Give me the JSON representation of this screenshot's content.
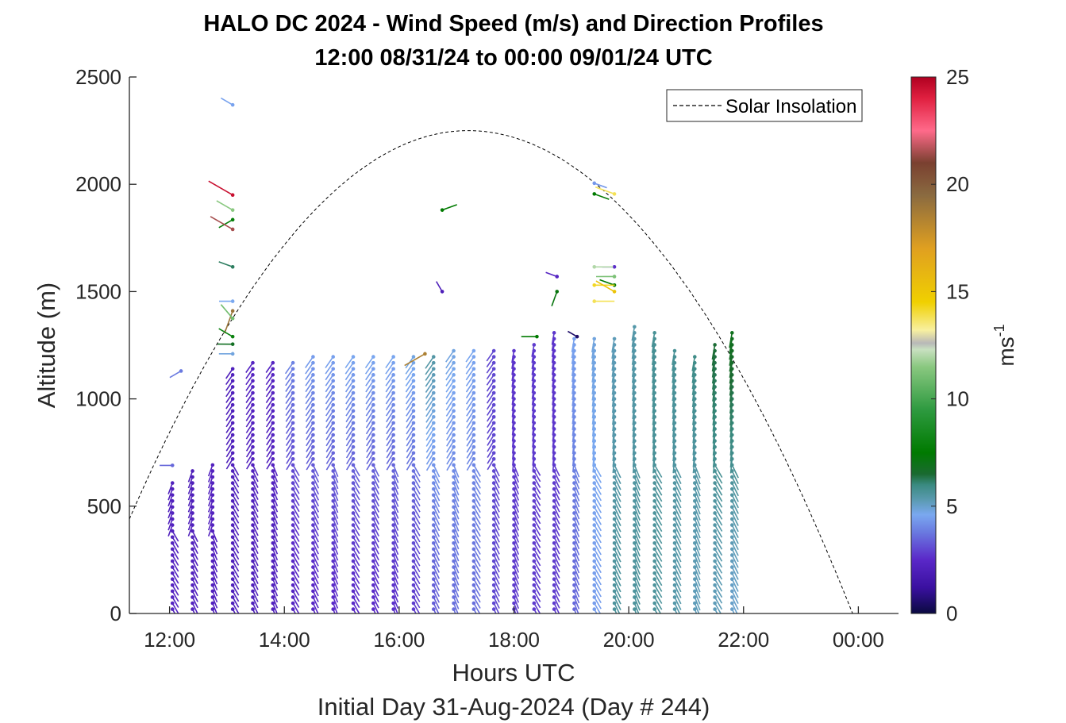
{
  "chart_data": {
    "type": "quiver",
    "title": "HALO DC 2024 - Wind Speed (m/s) and Direction Profiles",
    "subtitle": "12:00 08/31/24 to 00:00 09/01/24  UTC",
    "xlabel": "Hours UTC",
    "xlabel2": "Initial Day 31-Aug-2024 (Day # 244)",
    "ylabel": "Altitude (m)",
    "xlim": [
      11.3,
      24.7
    ],
    "ylim": [
      0,
      2500
    ],
    "xticks": [
      {
        "value": 12,
        "label": "12:00"
      },
      {
        "value": 14,
        "label": "14:00"
      },
      {
        "value": 16,
        "label": "16:00"
      },
      {
        "value": 18,
        "label": "18:00"
      },
      {
        "value": 20,
        "label": "20:00"
      },
      {
        "value": 22,
        "label": "22:00"
      },
      {
        "value": 24,
        "label": "00:00"
      }
    ],
    "yticks": [
      {
        "value": 0,
        "label": "0"
      },
      {
        "value": 500,
        "label": "500"
      },
      {
        "value": 1000,
        "label": "1000"
      },
      {
        "value": 1500,
        "label": "1500"
      },
      {
        "value": 2000,
        "label": "2000"
      },
      {
        "value": 2500,
        "label": "2500"
      }
    ],
    "colorbar": {
      "label": "ms",
      "label_sup": "-1",
      "range": [
        0,
        25
      ],
      "ticks": [
        {
          "value": 0,
          "label": "0"
        },
        {
          "value": 5,
          "label": "5"
        },
        {
          "value": 10,
          "label": "10"
        },
        {
          "value": 15,
          "label": "15"
        },
        {
          "value": 20,
          "label": "20"
        },
        {
          "value": 25,
          "label": "25"
        }
      ],
      "stops": [
        {
          "v": 0,
          "c": "#0a0a40"
        },
        {
          "v": 1.2,
          "c": "#3a10a0"
        },
        {
          "v": 2.5,
          "c": "#5a28c8"
        },
        {
          "v": 3.8,
          "c": "#6a7ae0"
        },
        {
          "v": 4.6,
          "c": "#7aa8f0"
        },
        {
          "v": 5.3,
          "c": "#5a9ab0"
        },
        {
          "v": 6.0,
          "c": "#3a8a80"
        },
        {
          "v": 6.5,
          "c": "#1a6a30"
        },
        {
          "v": 7.5,
          "c": "#007a00"
        },
        {
          "v": 9.5,
          "c": "#2e9a40"
        },
        {
          "v": 11.5,
          "c": "#8ac880"
        },
        {
          "v": 12.3,
          "c": "#c8e0c0"
        },
        {
          "v": 12.6,
          "c": "#b8b8b8"
        },
        {
          "v": 13.2,
          "c": "#f8f0a0"
        },
        {
          "v": 14.5,
          "c": "#f0d000"
        },
        {
          "v": 17.0,
          "c": "#e0a020"
        },
        {
          "v": 19.5,
          "c": "#8a6a40"
        },
        {
          "v": 21.0,
          "c": "#7a4030"
        },
        {
          "v": 22.5,
          "c": "#ff6a8a"
        },
        {
          "v": 24.0,
          "c": "#e02040"
        },
        {
          "v": 25.0,
          "c": "#b00020"
        }
      ]
    },
    "legend": {
      "label": "Solar Insolation",
      "position": "top-right",
      "style": "dashed"
    },
    "solar_insolation": {
      "rise_hour": 11.3,
      "set_hour": 23.9,
      "peak_hour": 17.2,
      "peak_altitude": 2250,
      "start_altitude": 440
    },
    "profile_times": [
      12.05,
      12.4,
      12.75,
      13.1,
      13.45,
      13.8,
      14.15,
      14.5,
      14.85,
      15.2,
      15.55,
      15.9,
      16.25,
      16.6,
      16.95,
      17.3,
      17.65,
      18.0,
      18.35,
      18.7,
      19.05,
      19.4,
      19.75,
      20.1,
      20.45,
      20.8,
      21.15,
      21.5,
      21.8
    ],
    "profile_tops": [
      620,
      690,
      700,
      1160,
      1170,
      1180,
      1190,
      1200,
      1210,
      1210,
      1210,
      1210,
      1210,
      1210,
      1240,
      1250,
      1250,
      1250,
      1260,
      1320,
      1280,
      1290,
      1300,
      1360,
      1320,
      1240,
      1220,
      1270,
      1320
    ],
    "profile_speeds_low": [
      2.3,
      2.2,
      2.2,
      2.1,
      2.1,
      2.2,
      2.3,
      2.4,
      2.5,
      2.5,
      2.5,
      2.6,
      2.8,
      3.3,
      3.6,
      3.6,
      3.0,
      2.8,
      2.8,
      2.8,
      3.5,
      4.4,
      5.6,
      5.6,
      5.6,
      5.4,
      5.2,
      5.2,
      5.0
    ],
    "profile_speeds_high": [
      2.1,
      2.0,
      2.2,
      2.1,
      2.3,
      2.3,
      4.0,
      4.4,
      4.5,
      4.6,
      4.6,
      4.6,
      4.8,
      5.5,
      4.8,
      4.6,
      3.0,
      2.7,
      2.8,
      2.7,
      4.5,
      4.8,
      5.2,
      5.4,
      5.7,
      5.7,
      5.9,
      6.5,
      6.9
    ],
    "high_level_points": [
      {
        "t": 13.1,
        "alt": 2370,
        "speed": 4.5,
        "dir": 300
      },
      {
        "t": 13.1,
        "alt": 1950,
        "speed": 24.5,
        "dir": 300
      },
      {
        "t": 13.1,
        "alt": 1880,
        "speed": 11.5,
        "dir": 300
      },
      {
        "t": 13.1,
        "alt": 1835,
        "speed": 7.8,
        "dir": 240
      },
      {
        "t": 13.1,
        "alt": 1790,
        "speed": 21.5,
        "dir": 300
      },
      {
        "t": 13.1,
        "alt": 1615,
        "speed": 6.2,
        "dir": 290
      },
      {
        "t": 13.1,
        "alt": 1455,
        "speed": 4.6,
        "dir": 270
      },
      {
        "t": 13.1,
        "alt": 1410,
        "speed": 19.0,
        "dir": 200
      },
      {
        "t": 13.1,
        "alt": 1375,
        "speed": 11.0,
        "dir": 320
      },
      {
        "t": 13.1,
        "alt": 1290,
        "speed": 8.0,
        "dir": 300
      },
      {
        "t": 13.1,
        "alt": 1255,
        "speed": 6.8,
        "dir": 270
      },
      {
        "t": 13.1,
        "alt": 1210,
        "speed": 4.8,
        "dir": 270
      },
      {
        "t": 12.2,
        "alt": 1130,
        "speed": 3.8,
        "dir": 240
      },
      {
        "t": 12.05,
        "alt": 690,
        "speed": 3.5,
        "dir": 270
      },
      {
        "t": 16.75,
        "alt": 1880,
        "speed": 7.5,
        "dir": 70
      },
      {
        "t": 16.75,
        "alt": 1500,
        "speed": 2.0,
        "dir": 330
      },
      {
        "t": 18.75,
        "alt": 1570,
        "speed": 2.3,
        "dir": 290
      },
      {
        "t": 18.75,
        "alt": 1500,
        "speed": 7.2,
        "dir": 200
      },
      {
        "t": 18.4,
        "alt": 1290,
        "speed": 7.5,
        "dir": 270
      },
      {
        "t": 19.1,
        "alt": 1290,
        "speed": 0.5,
        "dir": 300
      },
      {
        "t": 19.4,
        "alt": 2005,
        "speed": 4.3,
        "dir": 110
      },
      {
        "t": 19.75,
        "alt": 1955,
        "speed": 13.8,
        "dir": 290
      },
      {
        "t": 19.4,
        "alt": 1955,
        "speed": 7.5,
        "dir": 110
      },
      {
        "t": 19.75,
        "alt": 1615,
        "speed": 2.6,
        "dir": 270
      },
      {
        "t": 19.4,
        "alt": 1615,
        "speed": 12.0,
        "dir": 90
      },
      {
        "t": 19.75,
        "alt": 1570,
        "speed": 11.2,
        "dir": 270
      },
      {
        "t": 19.75,
        "alt": 1530,
        "speed": 7.5,
        "dir": 290
      },
      {
        "t": 19.4,
        "alt": 1530,
        "speed": 14.2,
        "dir": 90
      },
      {
        "t": 19.75,
        "alt": 1500,
        "speed": 15.2,
        "dir": 300
      },
      {
        "t": 19.4,
        "alt": 1455,
        "speed": 13.8,
        "dir": 90
      },
      {
        "t": 16.45,
        "alt": 1210,
        "speed": 18.5,
        "dir": 240
      }
    ]
  }
}
